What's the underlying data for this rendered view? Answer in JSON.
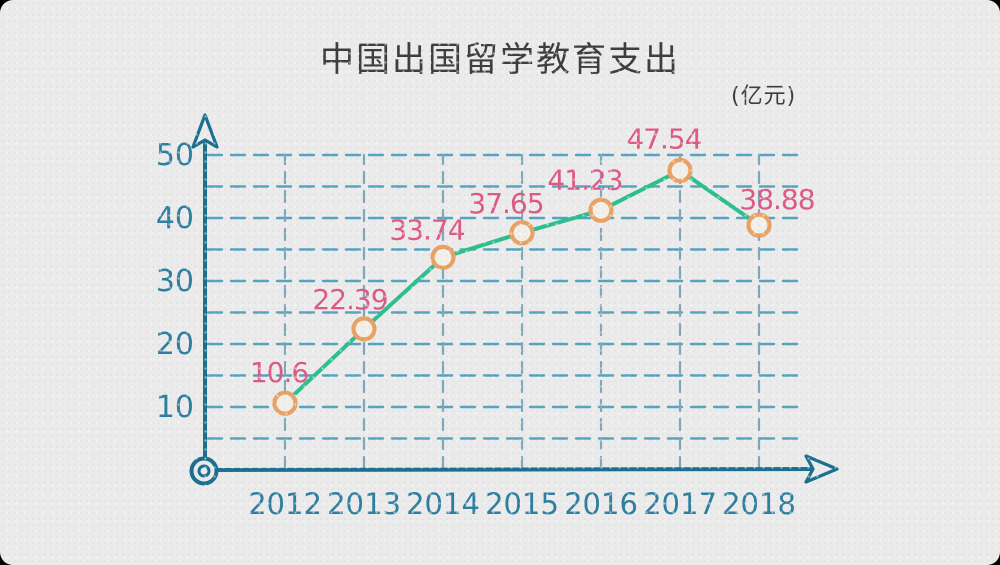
{
  "canvas": {
    "background": "#ebebeb",
    "corner_backdrop": "#000000"
  },
  "chart_data": {
    "type": "line",
    "title": "中国出国留学教育支出",
    "unit_label": "(亿元)",
    "categories": [
      "2012",
      "2013",
      "2014",
      "2015",
      "2016",
      "2017",
      "2018"
    ],
    "values": [
      10.6,
      22.39,
      33.74,
      37.65,
      41.23,
      47.54,
      38.88
    ],
    "point_labels": [
      "10.6",
      "22.39",
      "33.74",
      "37.65",
      "41.23",
      "47.54",
      "38.88"
    ],
    "y_ticks": [
      50,
      40,
      30,
      20,
      10
    ],
    "ylim": [
      0,
      50
    ],
    "grid_step": 5,
    "grid": true,
    "legend": "none",
    "style": "hand-drawn",
    "colors": {
      "title": "#3e3e3e",
      "axis": "#1c6f8f",
      "tick_label": "#2e7fa0",
      "gridline_h": "#58a3bf",
      "gridline_v": "#7fa9ba",
      "line": "#2fbe8d",
      "marker_stroke": "#e9a266",
      "marker_fill": "#f2efe9",
      "data_label": "#dc5b85"
    }
  }
}
